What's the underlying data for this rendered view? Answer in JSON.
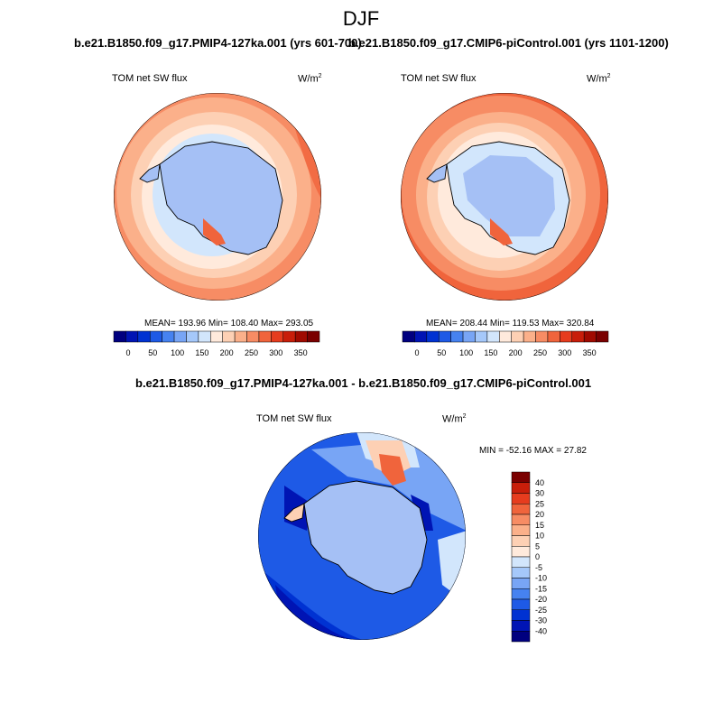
{
  "figure": {
    "title": "DJF"
  },
  "panels": [
    {
      "title": "b.e21.B1850.f09_g17.PMIP4-127ka.001 (yrs 601-700)",
      "variable": "TOM net SW flux",
      "units_base": "W/m",
      "units_exp": "2",
      "stats": "MEAN= 193.96  Min= 108.40  Max= 293.05"
    },
    {
      "title": "b.e21.B1850.f09_g17.CMIP6-piControl.001 (yrs 1101-1200)",
      "variable": "TOM net SW flux",
      "units_base": "W/m",
      "units_exp": "2",
      "stats": "MEAN= 208.44  Min= 119.53  Max= 320.84"
    },
    {
      "title": "b.e21.B1850.f09_g17.PMIP4-127ka.001 - b.e21.B1850.f09_g17.CMIP6-piControl.001",
      "variable": "TOM net SW flux",
      "units_base": "W/m",
      "units_exp": "2",
      "stats": "MIN = -52.16 MAX =  27.82"
    }
  ],
  "colorbar_abs": {
    "labels": [
      "0",
      "50",
      "100",
      "150",
      "200",
      "250",
      "300",
      "350"
    ],
    "colors": [
      "#00007f",
      "#0014b4",
      "#0032d2",
      "#1e5ae6",
      "#4682f0",
      "#78a5f5",
      "#a5c8fa",
      "#d2e6fc",
      "#ffeadc",
      "#fdd0b4",
      "#fbb08a",
      "#f78c64",
      "#f0643c",
      "#e63c1e",
      "#c81e0a",
      "#a00a00",
      "#7a0000"
    ]
  },
  "colorbar_diff": {
    "labels": [
      "40",
      "30",
      "25",
      "20",
      "15",
      "10",
      "5",
      "0",
      "-5",
      "-10",
      "-15",
      "-20",
      "-25",
      "-30",
      "-40"
    ],
    "colors": [
      "#7a0000",
      "#c81e0a",
      "#e63c1e",
      "#f0643c",
      "#f78c64",
      "#fbb08a",
      "#fdd0b4",
      "#ffeadc",
      "#d2e6fc",
      "#a5c8fa",
      "#78a5f5",
      "#4682f0",
      "#1e5ae6",
      "#0032d2",
      "#0014b4",
      "#00007f"
    ]
  },
  "map_colors": {
    "land": "#a5c0f5",
    "coastline": "#000000"
  }
}
